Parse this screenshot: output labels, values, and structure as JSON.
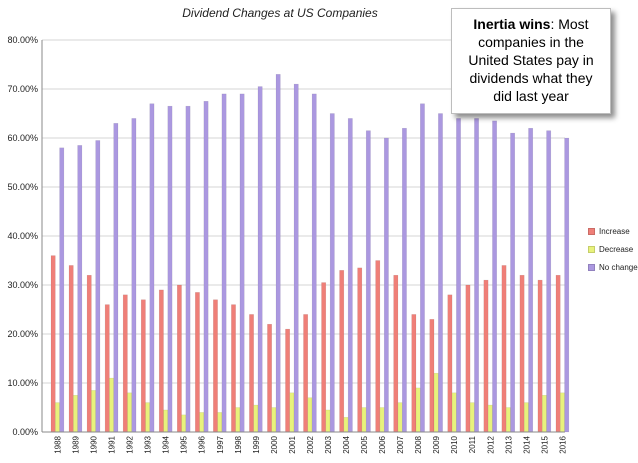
{
  "title": "Dividend Changes at US Companies",
  "callout": {
    "bold": "Inertia wins",
    "text": ": Most companies in the United States pay in dividends what they did last year"
  },
  "colors": {
    "increase": "#ef7f78",
    "decrease": "#e8f27c",
    "no_change": "#ab98e0",
    "grid": "#d6d6d6",
    "axis": "#8a8a8a"
  },
  "chart_data": {
    "type": "bar",
    "title": "Dividend Changes at US Companies",
    "categories": [
      "1988",
      "1989",
      "1990",
      "1991",
      "1992",
      "1993",
      "1994",
      "1995",
      "1996",
      "1997",
      "1998",
      "1999",
      "2000",
      "2001",
      "2002",
      "2003",
      "2004",
      "2005",
      "2006",
      "2007",
      "2008",
      "2009",
      "2010",
      "2011",
      "2012",
      "2013",
      "2014",
      "2015",
      "2016"
    ],
    "series": [
      {
        "name": "Increase",
        "color": "#ef7f78",
        "values": [
          36,
          34,
          32,
          26,
          28,
          27,
          29,
          30,
          28.5,
          27,
          26,
          24,
          22,
          21,
          24,
          30.5,
          33,
          33.5,
          35,
          32,
          24,
          23,
          28,
          30,
          31,
          34,
          32,
          31,
          32
        ]
      },
      {
        "name": "Decrease",
        "color": "#e8f27c",
        "values": [
          6,
          7.5,
          8.5,
          11,
          8,
          6,
          4.5,
          3.5,
          4,
          4,
          5,
          5.5,
          5,
          8,
          7,
          4.5,
          3,
          5,
          5,
          6,
          9,
          12,
          8,
          6,
          5.5,
          5,
          6,
          7.5,
          8
        ]
      },
      {
        "name": "No change",
        "color": "#ab98e0",
        "values": [
          58,
          58.5,
          59.5,
          63,
          64,
          67,
          66.5,
          66.5,
          67.5,
          69,
          69,
          70.5,
          73,
          71,
          69,
          65,
          64,
          61.5,
          60,
          62,
          67,
          65,
          64,
          64,
          63.5,
          61,
          62,
          61.5,
          60
        ]
      }
    ],
    "yticks": [
      "0.00%",
      "10.00%",
      "20.00%",
      "30.00%",
      "40.00%",
      "50.00%",
      "60.00%",
      "70.00%",
      "80.00%"
    ],
    "ylim": [
      0,
      80
    ],
    "legend_position": "right",
    "grid": true
  }
}
